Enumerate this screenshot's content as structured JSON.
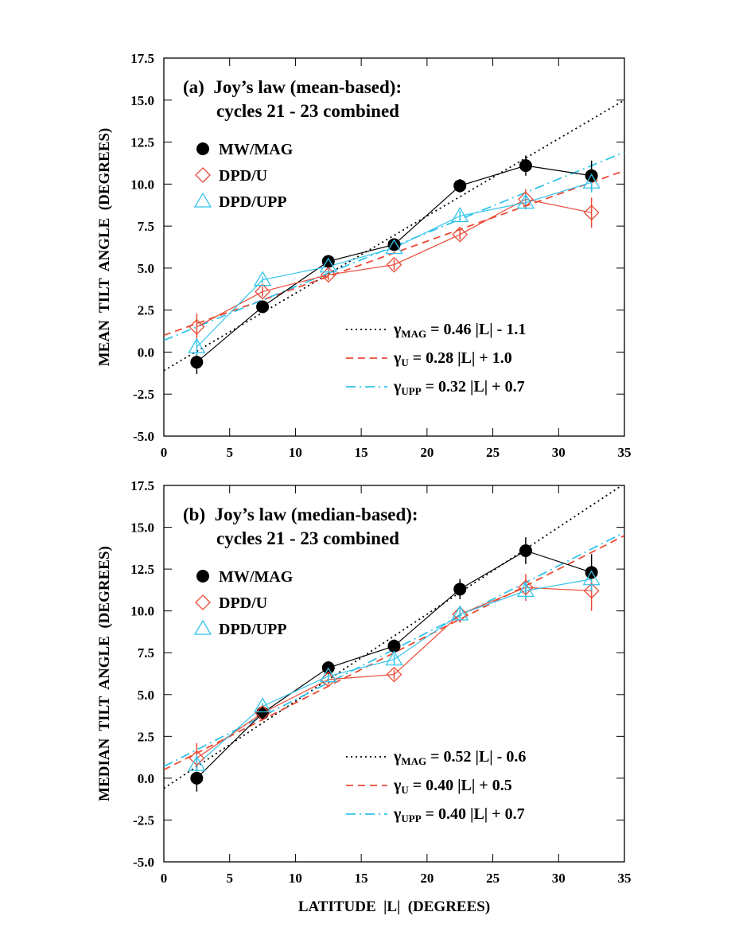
{
  "chart_data": [
    {
      "type": "line",
      "title": [
        "(a)  Joy’s law (mean-based):",
        "cycles 21 - 23 combined"
      ],
      "y_label": "MEAN  TILT  ANGLE  (DEGREES)",
      "x": [
        2.5,
        7.5,
        12.5,
        17.5,
        22.5,
        27.5,
        32.5
      ],
      "xlim": [
        0,
        35
      ],
      "xticks": [
        0,
        5,
        10,
        15,
        20,
        25,
        30,
        35
      ],
      "ylim": [
        -5,
        17.5
      ],
      "yticks": [
        {
          "value": -5,
          "label": "-5.0"
        },
        -2.5,
        {
          "value": 0,
          "label": "0.0"
        },
        2.5,
        {
          "value": 5,
          "label": "5.0"
        },
        7.5,
        {
          "value": 10,
          "label": "10.0"
        },
        12.5,
        {
          "value": 15,
          "label": "15.0"
        },
        17.5
      ],
      "series": [
        {
          "name": "MW/MAG",
          "color": "#000000",
          "marker": "circle",
          "values": [
            -0.6,
            2.7,
            5.4,
            6.4,
            9.9,
            11.1,
            10.5
          ],
          "errors": [
            0.7,
            0.3,
            0.3,
            0.3,
            0.4,
            0.6,
            0.9
          ]
        },
        {
          "name": "DPD/U",
          "color": "#ea4a35",
          "marker": "diamond",
          "values": [
            1.5,
            3.6,
            4.6,
            5.2,
            7.0,
            9.1,
            8.3
          ],
          "errors": [
            0.8,
            0.3,
            0.3,
            0.3,
            0.3,
            0.6,
            0.9
          ]
        },
        {
          "name": "DPD/UPP",
          "color": "#33c4ea",
          "marker": "triangle",
          "values": [
            0.3,
            4.3,
            5.1,
            6.2,
            8.1,
            8.9,
            10.1
          ],
          "errors": [
            0.5,
            0.2,
            0.2,
            0.2,
            0.3,
            0.4,
            0.6
          ]
        }
      ],
      "fits": [
        {
          "symbol": "γ",
          "subscript": "MAG",
          "equation": " = 0.46 |L| - 1.1",
          "slope": 0.46,
          "intercept": -1.1,
          "color": "#000000",
          "style": "dotted"
        },
        {
          "symbol": "γ",
          "subscript": "U",
          "equation": " = 0.28 |L| + 1.0",
          "slope": 0.28,
          "intercept": 1.0,
          "color": "#ea4a35",
          "style": "dashed"
        },
        {
          "symbol": "γ",
          "subscript": "UPP",
          "equation": " = 0.32 |L| + 0.7",
          "slope": 0.32,
          "intercept": 0.7,
          "color": "#33c4ea",
          "style": "dashdot"
        }
      ]
    },
    {
      "type": "line",
      "title": [
        "(b)  Joy’s law (median-based):",
        "cycles 21 - 23 combined"
      ],
      "y_label": "MEDIAN  TILT  ANGLE  (DEGREES)",
      "x_label": "LATITUDE  |L|  (DEGREES)",
      "x": [
        2.5,
        7.5,
        12.5,
        17.5,
        22.5,
        27.5,
        32.5
      ],
      "xlim": [
        0,
        35
      ],
      "xticks": [
        0,
        5,
        10,
        15,
        20,
        25,
        30,
        35
      ],
      "ylim": [
        -5,
        17.5
      ],
      "yticks": [
        {
          "value": -5,
          "label": "-5.0"
        },
        -2.5,
        {
          "value": 0,
          "label": "0.0"
        },
        2.5,
        {
          "value": 5,
          "label": "5.0"
        },
        7.5,
        {
          "value": 10,
          "label": "10.0"
        },
        12.5,
        {
          "value": 15,
          "label": "15.0"
        },
        17.5
      ],
      "series": [
        {
          "name": "MW/MAG",
          "color": "#000000",
          "marker": "circle",
          "values": [
            0.0,
            3.9,
            6.6,
            7.9,
            11.3,
            13.6,
            12.3
          ],
          "errors": [
            0.8,
            0.3,
            0.4,
            0.4,
            0.6,
            0.8,
            1.1
          ]
        },
        {
          "name": "DPD/U",
          "color": "#ea4a35",
          "marker": "diamond",
          "values": [
            1.2,
            3.9,
            5.9,
            6.2,
            9.8,
            11.4,
            11.2
          ],
          "errors": [
            0.9,
            0.3,
            0.3,
            0.3,
            0.5,
            0.8,
            1.2
          ]
        },
        {
          "name": "DPD/UPP",
          "color": "#33c4ea",
          "marker": "triangle",
          "values": [
            0.8,
            4.3,
            6.1,
            7.1,
            9.8,
            11.2,
            11.9
          ],
          "errors": [
            0.6,
            0.2,
            0.3,
            0.3,
            0.4,
            0.5,
            0.7
          ]
        }
      ],
      "fits": [
        {
          "symbol": "γ",
          "subscript": "MAG",
          "equation": " = 0.52 |L| - 0.6",
          "slope": 0.52,
          "intercept": -0.6,
          "color": "#000000",
          "style": "dotted"
        },
        {
          "symbol": "γ",
          "subscript": "U",
          "equation": " = 0.40 |L| + 0.5",
          "slope": 0.4,
          "intercept": 0.5,
          "color": "#ea4a35",
          "style": "dashed"
        },
        {
          "symbol": "γ",
          "subscript": "UPP",
          "equation": " = 0.40 |L| + 0.7",
          "slope": 0.4,
          "intercept": 0.7,
          "color": "#33c4ea",
          "style": "dashdot"
        }
      ]
    }
  ]
}
